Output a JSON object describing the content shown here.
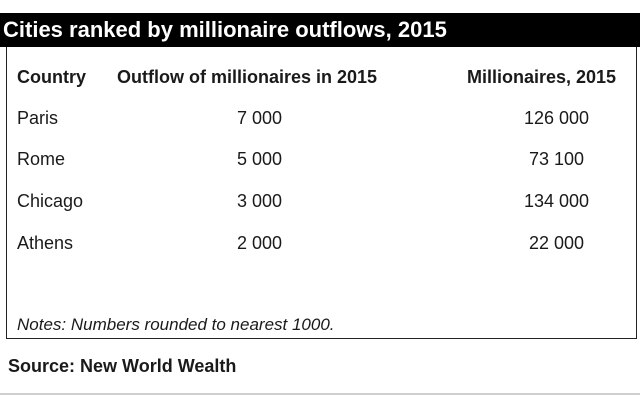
{
  "title": "Cities ranked by millionaire outflows, 2015",
  "table": {
    "headers": [
      "Country",
      "Outflow of millionaires in 2015",
      "Millionaires, 2015"
    ],
    "rows": [
      [
        "Paris",
        "7 000",
        "126 000"
      ],
      [
        "Rome",
        "5 000",
        "73 100"
      ],
      [
        "Chicago",
        "3 000",
        "134 000"
      ],
      [
        "Athens",
        "2 000",
        "22 000"
      ]
    ]
  },
  "notes": "Notes: Numbers rounded to nearest 1000.",
  "source": "Source: New World Wealth"
}
